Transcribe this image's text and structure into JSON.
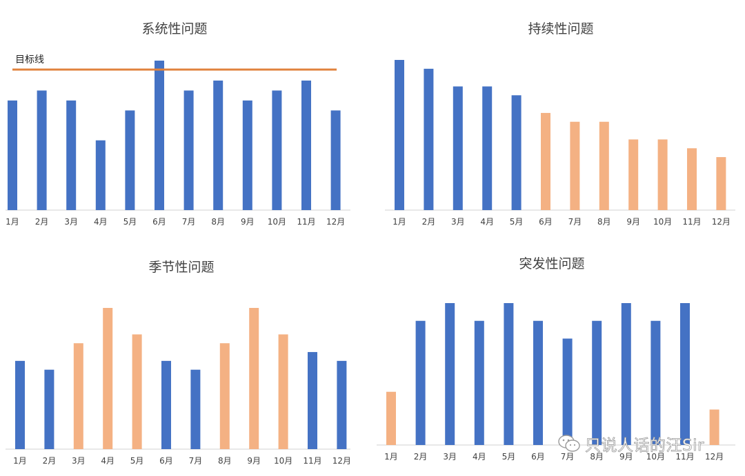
{
  "chart_data": [
    {
      "type": "bar",
      "title": "系统性问题",
      "categories": [
        "1月",
        "2月",
        "3月",
        "4月",
        "5月",
        "6月",
        "7月",
        "8月",
        "9月",
        "10月",
        "11月",
        "12月"
      ],
      "values": [
        11,
        12,
        11,
        7,
        10,
        15,
        12,
        13,
        11,
        12,
        13,
        10
      ],
      "colors": [
        "blue",
        "blue",
        "blue",
        "blue",
        "blue",
        "blue",
        "blue",
        "blue",
        "blue",
        "blue",
        "blue",
        "blue"
      ],
      "ylim": [
        0,
        15
      ],
      "reference_line": {
        "label": "目标线",
        "value": 14.1,
        "color": "#e0823c"
      },
      "grid": false
    },
    {
      "type": "bar",
      "title": "持续性问题",
      "categories": [
        "1月",
        "2月",
        "3月",
        "4月",
        "5月",
        "6月",
        "7月",
        "8月",
        "9月",
        "10月",
        "11月",
        "12月"
      ],
      "values": [
        17,
        16,
        14,
        14,
        13,
        11,
        10,
        10,
        8,
        8,
        7,
        6
      ],
      "colors": [
        "blue",
        "blue",
        "blue",
        "blue",
        "blue",
        "orange",
        "orange",
        "orange",
        "orange",
        "orange",
        "orange",
        "orange"
      ],
      "ylim": [
        0,
        17
      ],
      "grid": false
    },
    {
      "type": "bar",
      "title": "季节性问题",
      "categories": [
        "1月",
        "2月",
        "3月",
        "4月",
        "5月",
        "6月",
        "7月",
        "8月",
        "9月",
        "10月",
        "11月",
        "12月"
      ],
      "values": [
        10,
        9,
        12,
        16,
        13,
        10,
        9,
        12,
        16,
        13,
        11,
        10
      ],
      "colors": [
        "blue",
        "blue",
        "orange",
        "orange",
        "orange",
        "blue",
        "blue",
        "orange",
        "orange",
        "orange",
        "blue",
        "blue"
      ],
      "ylim": [
        0,
        16
      ],
      "grid": false
    },
    {
      "type": "bar",
      "title": "突发性问题",
      "categories": [
        "1月",
        "2月",
        "3月",
        "4月",
        "5月",
        "6月",
        "7月",
        "8月",
        "9月",
        "10月",
        "11月",
        "12月"
      ],
      "values": [
        6,
        14,
        16,
        14,
        16,
        14,
        12,
        14,
        16,
        14,
        16,
        4
      ],
      "colors": [
        "orange",
        "blue",
        "blue",
        "blue",
        "blue",
        "blue",
        "blue",
        "blue",
        "blue",
        "blue",
        "blue",
        "orange"
      ],
      "ylim": [
        0,
        16
      ],
      "grid": false
    }
  ],
  "colors": {
    "blue": "#4472c4",
    "orange": "#f4b183",
    "axis": "#d9d9d9",
    "text": "#404040"
  },
  "watermark": {
    "text": "只说人话的汪Sir",
    "icon": "wechat-icon"
  }
}
